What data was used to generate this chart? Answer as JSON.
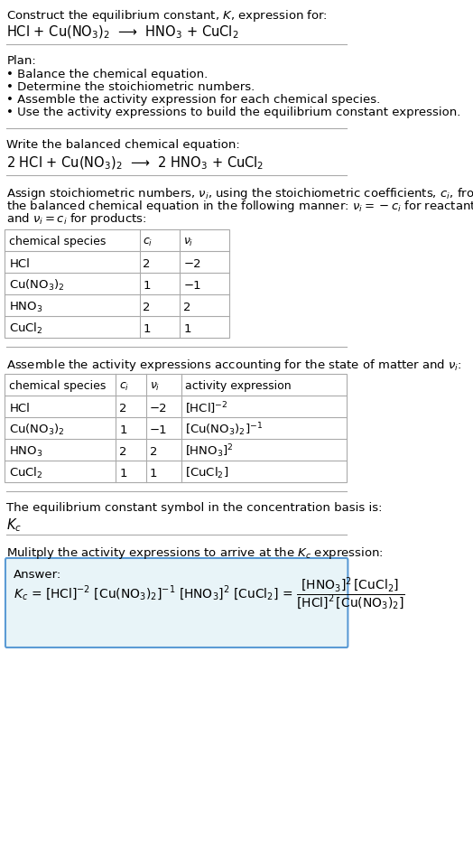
{
  "bg_color": "#ffffff",
  "title_line1": "Construct the equilibrium constant, $K$, expression for:",
  "title_line2": "HCl + Cu(NO$_3$)$_2$  ⟶  HNO$_3$ + CuCl$_2$",
  "plan_header": "Plan:",
  "plan_items": [
    "• Balance the chemical equation.",
    "• Determine the stoichiometric numbers.",
    "• Assemble the activity expression for each chemical species.",
    "• Use the activity expressions to build the equilibrium constant expression."
  ],
  "balanced_header": "Write the balanced chemical equation:",
  "balanced_eq": "2 HCl + Cu(NO$_3$)$_2$  ⟶  2 HNO$_3$ + CuCl$_2$",
  "stoich_intro": "Assign stoichiometric numbers, $\\nu_i$, using the stoichiometric coefficients, $c_i$, from\nthe balanced chemical equation in the following manner: $\\nu_i = -c_i$ for reactants\nand $\\nu_i = c_i$ for products:",
  "table1_headers": [
    "chemical species",
    "$c_i$",
    "$\\nu_i$"
  ],
  "table1_rows": [
    [
      "HCl",
      "2",
      "−2"
    ],
    [
      "Cu(NO$_3$)$_2$",
      "1",
      "−1"
    ],
    [
      "HNO$_3$",
      "2",
      "2"
    ],
    [
      "CuCl$_2$",
      "1",
      "1"
    ]
  ],
  "activity_intro": "Assemble the activity expressions accounting for the state of matter and $\\nu_i$:",
  "table2_headers": [
    "chemical species",
    "$c_i$",
    "$\\nu_i$",
    "activity expression"
  ],
  "table2_rows": [
    [
      "HCl",
      "2",
      "−2",
      "[HCl]$^{-2}$"
    ],
    [
      "Cu(NO$_3$)$_2$",
      "1",
      "−1",
      "[Cu(NO$_3$)$_2$]$^{-1}$"
    ],
    [
      "HNO$_3$",
      "2",
      "2",
      "[HNO$_3$]$^2$"
    ],
    [
      "CuCl$_2$",
      "1",
      "1",
      "[CuCl$_2$]"
    ]
  ],
  "kc_symbol_intro": "The equilibrium constant symbol in the concentration basis is:",
  "kc_symbol": "$K_c$",
  "multiply_intro": "Mulitply the activity expressions to arrive at the $K_c$ expression:",
  "answer_box_color": "#e8f4f8",
  "answer_border_color": "#5b9bd5",
  "font_size": 9.5,
  "table_font_size": 9.5
}
